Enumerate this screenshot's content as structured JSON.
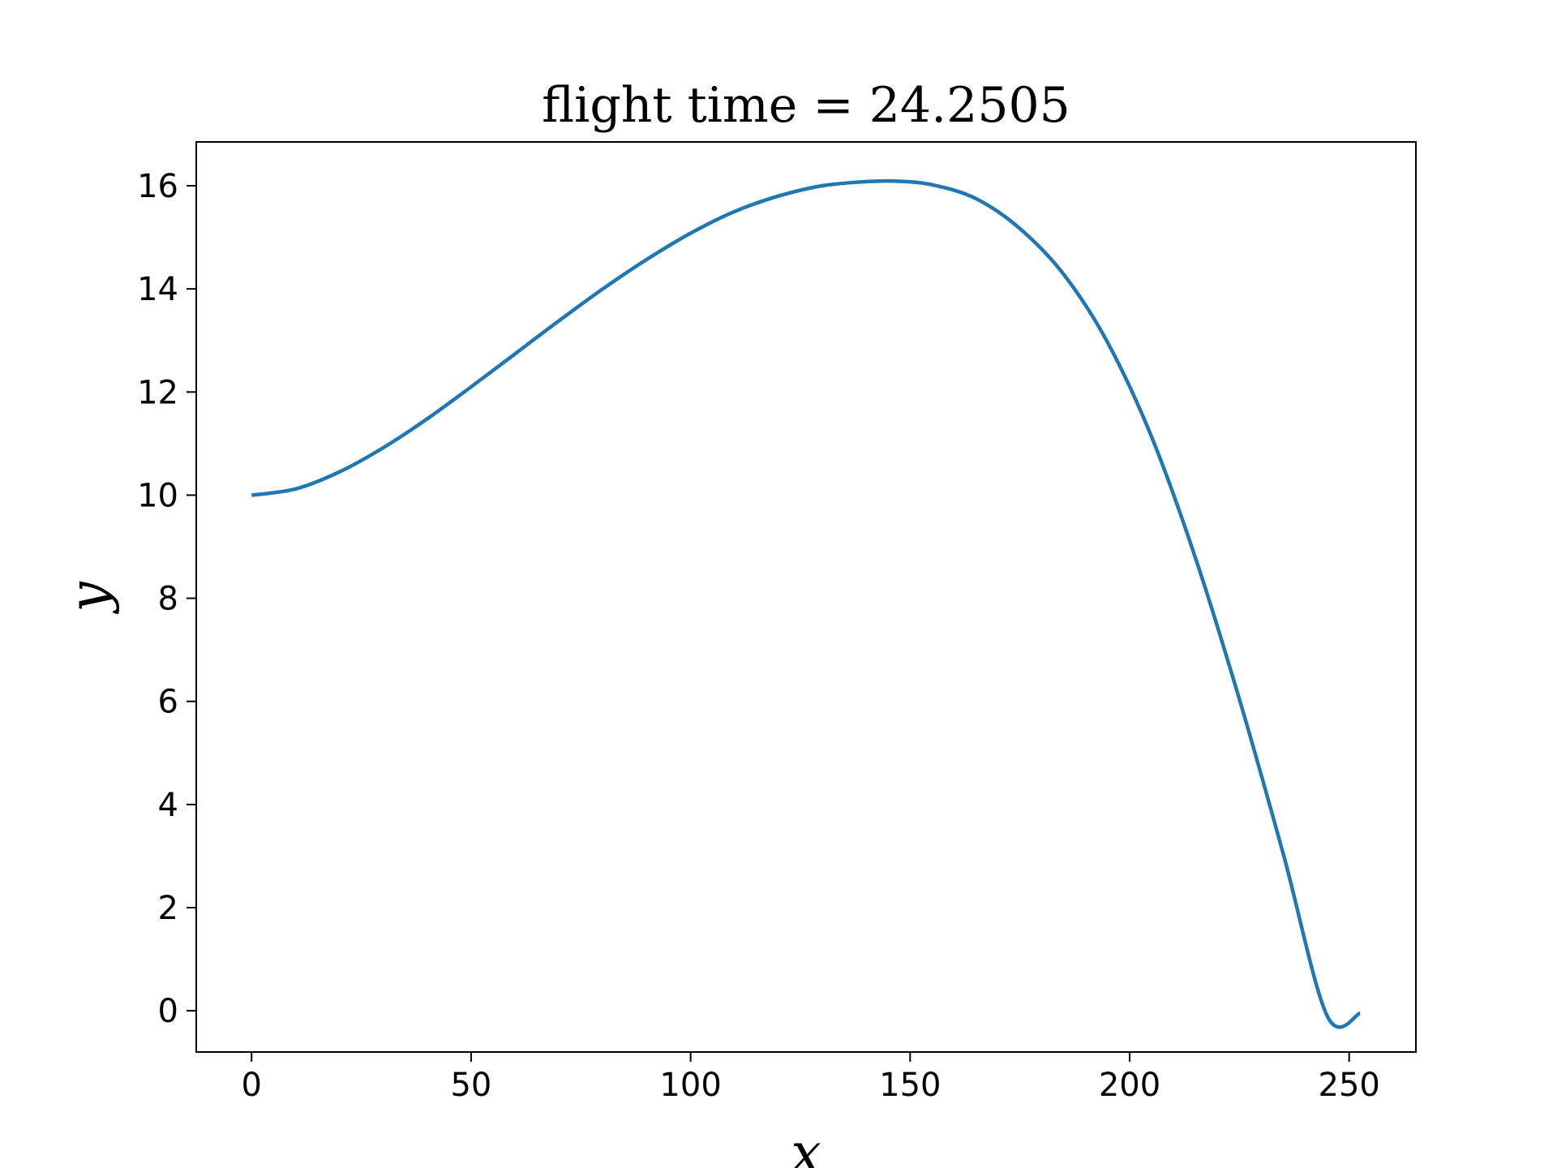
{
  "chart_data": {
    "type": "line",
    "title": "flight time = 24.2505",
    "xlabel": "x",
    "ylabel": "y",
    "xlim": [
      -12.6,
      265.2
    ],
    "ylim": [
      -0.8,
      16.85
    ],
    "xticks": [
      0,
      50,
      100,
      150,
      200,
      250
    ],
    "yticks": [
      0,
      2,
      4,
      6,
      8,
      10,
      12,
      14,
      16
    ],
    "grid": false,
    "legend": "none",
    "colors": {
      "line": "#1f77b4",
      "axes": "#000000",
      "background": "#ffffff"
    },
    "series": [
      {
        "x": [
          0,
          10,
          20,
          30,
          40,
          50,
          60,
          70,
          80,
          90,
          100,
          110,
          120,
          130,
          140,
          146.6,
          155,
          165,
          175,
          185,
          195,
          205,
          215,
          225,
          235,
          245,
          252.5
        ],
        "y": [
          10.0,
          10.12,
          10.45,
          10.92,
          11.48,
          12.1,
          12.74,
          13.38,
          14.0,
          14.57,
          15.08,
          15.5,
          15.8,
          16.0,
          16.08,
          16.09,
          16.02,
          15.75,
          15.17,
          14.28,
          12.96,
          11.13,
          8.78,
          6.04,
          3.04,
          -0.1,
          -0.05
        ]
      }
    ]
  }
}
